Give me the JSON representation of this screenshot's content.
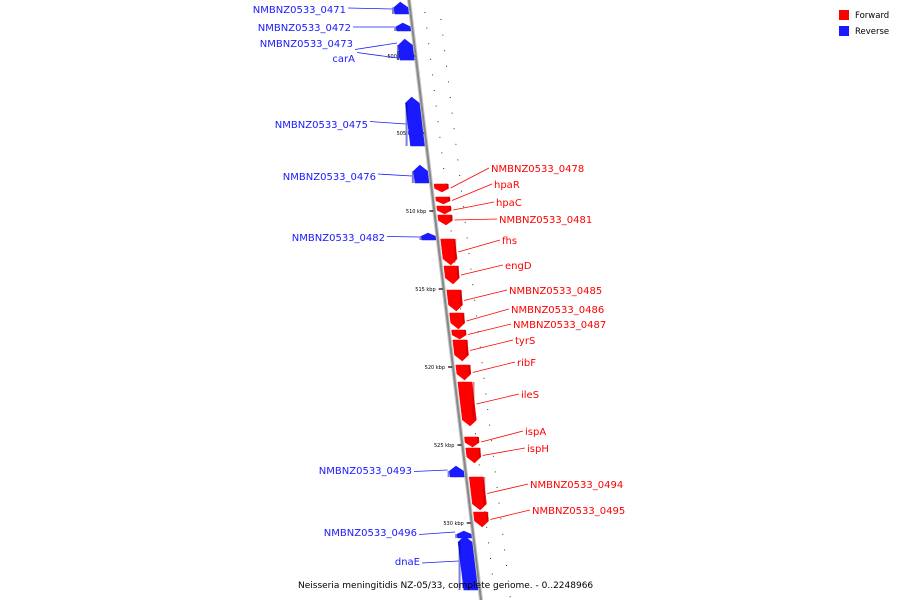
{
  "colors": {
    "forward": "#ff0000",
    "reverse": "#1a1aff",
    "backbone": "#888888"
  },
  "legend": [
    {
      "label": "Forward",
      "color": "#ff0000"
    },
    {
      "label": "Reverse",
      "color": "#1a1aff"
    }
  ],
  "caption": "Neisseria meningitidis NZ-05/33, complete genome. - 0..2248966",
  "tick_labels": [
    "500 kbp",
    "505 kbp",
    "510 kbp",
    "515 kbp",
    "520 kbp",
    "525 kbp",
    "530 kbp"
  ],
  "genes": [
    {
      "label": "NMBNZ0533_0471",
      "strand": "reverse"
    },
    {
      "label": "NMBNZ0533_0472",
      "strand": "reverse"
    },
    {
      "label": "NMBNZ0533_0473",
      "strand": "reverse"
    },
    {
      "label": "carA",
      "strand": "reverse"
    },
    {
      "label": "NMBNZ0533_0475",
      "strand": "reverse"
    },
    {
      "label": "NMBNZ0533_0476",
      "strand": "reverse"
    },
    {
      "label": "NMBNZ0533_0478",
      "strand": "forward"
    },
    {
      "label": "hpaR",
      "strand": "forward"
    },
    {
      "label": "hpaC",
      "strand": "forward"
    },
    {
      "label": "NMBNZ0533_0481",
      "strand": "forward"
    },
    {
      "label": "NMBNZ0533_0482",
      "strand": "reverse"
    },
    {
      "label": "fhs",
      "strand": "forward"
    },
    {
      "label": "engD",
      "strand": "forward"
    },
    {
      "label": "NMBNZ0533_0485",
      "strand": "forward"
    },
    {
      "label": "NMBNZ0533_0486",
      "strand": "forward"
    },
    {
      "label": "NMBNZ0533_0487",
      "strand": "forward"
    },
    {
      "label": "tyrS",
      "strand": "forward"
    },
    {
      "label": "ribF",
      "strand": "forward"
    },
    {
      "label": "ileS",
      "strand": "forward"
    },
    {
      "label": "ispA",
      "strand": "forward"
    },
    {
      "label": "ispH",
      "strand": "forward"
    },
    {
      "label": "NMBNZ0533_0493",
      "strand": "reverse"
    },
    {
      "label": "NMBNZ0533_0494",
      "strand": "forward"
    },
    {
      "label": "NMBNZ0533_0495",
      "strand": "forward"
    },
    {
      "label": "NMBNZ0533_0496",
      "strand": "reverse"
    },
    {
      "label": "dnaE",
      "strand": "reverse"
    }
  ]
}
